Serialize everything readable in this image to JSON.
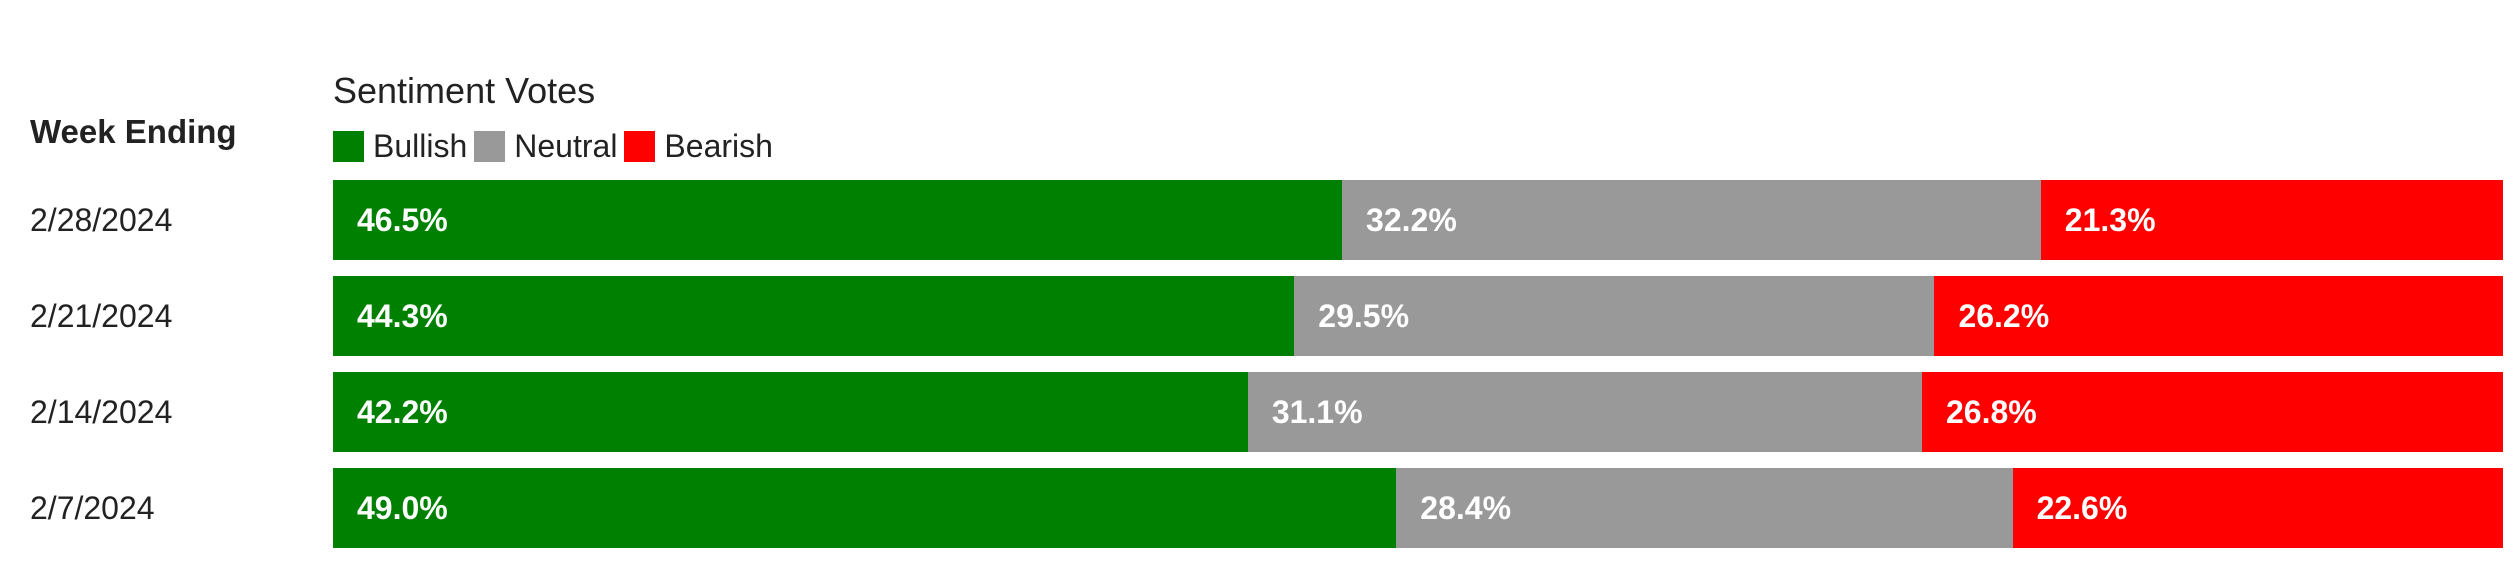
{
  "chart_data": {
    "type": "bar",
    "orientation": "horizontal",
    "stacked": true,
    "percent_stacked": true,
    "title": "Sentiment Votes",
    "category_header": "Week Ending",
    "categories": [
      "2/28/2024",
      "2/21/2024",
      "2/14/2024",
      "2/7/2024"
    ],
    "series": [
      {
        "name": "Bullish",
        "color": "#008000",
        "values": [
          46.5,
          44.3,
          42.2,
          49.0
        ],
        "labels": [
          "46.5%",
          "44.3%",
          "42.2%",
          "49.0%"
        ]
      },
      {
        "name": "Neutral",
        "color": "#999999",
        "values": [
          32.2,
          29.5,
          31.1,
          28.4
        ],
        "labels": [
          "32.2%",
          "29.5%",
          "31.1%",
          "28.4%"
        ]
      },
      {
        "name": "Bearish",
        "color": "#ff0000",
        "values": [
          21.3,
          26.2,
          26.8,
          22.6
        ],
        "labels": [
          "21.3%",
          "26.2%",
          "26.8%",
          "22.6%"
        ]
      }
    ],
    "legend_position": "top-left",
    "grid": false
  }
}
